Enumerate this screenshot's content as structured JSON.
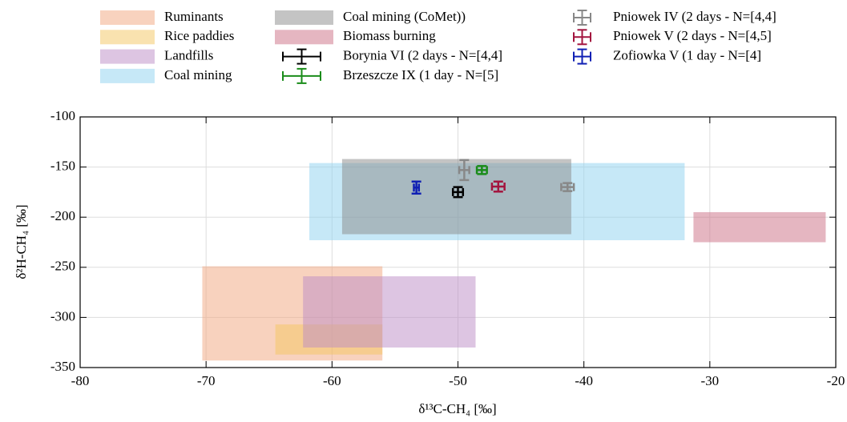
{
  "chart_data": {
    "type": "scatter",
    "x_label": "δ¹³C-CH₄ [‰]",
    "y_label": "δ²H-CH₄ [‰]",
    "xlim": [
      -80,
      -20
    ],
    "xticks": [
      -80,
      -70,
      -60,
      -50,
      -40,
      -30,
      -20
    ],
    "ylim": [
      -350,
      -100
    ],
    "yticks": [
      -350,
      -300,
      -250,
      -200,
      -150,
      -100
    ],
    "grid": true,
    "regions": [
      {
        "name": "Ruminants",
        "color": "#f1a67e",
        "x": [
          -70.3,
          -56
        ],
        "y": [
          -343,
          -249
        ]
      },
      {
        "name": "Rice paddies",
        "color": "#f4c65f",
        "x": [
          -64.5,
          -56
        ],
        "y": [
          -337,
          -307
        ]
      },
      {
        "name": "Landfills",
        "color": "#bb8cc6",
        "x": [
          -62.3,
          -48.6
        ],
        "y": [
          -330,
          -259
        ]
      },
      {
        "name": "Coal mining",
        "color": "#8dd2f0",
        "x": [
          -61.8,
          -32
        ],
        "y": [
          -223,
          -146
        ]
      },
      {
        "name": "Coal mining (CoMet))",
        "color": "#8a8a8a",
        "x": [
          -59.2,
          -41
        ],
        "y": [
          -217,
          -142
        ]
      },
      {
        "name": "Biomass burning",
        "color": "#cc6e84",
        "x": [
          -31.3,
          -20.8
        ],
        "y": [
          -225,
          -195
        ]
      }
    ],
    "series": [
      {
        "name": "Borynia VI (2 days - N=[4,4]",
        "color": "#000000",
        "x": [
          -50
        ],
        "values": [
          -175
        ],
        "xerr": [
          0.4
        ],
        "yerr": [
          5
        ]
      },
      {
        "name": "Brzeszcze IX (1 day - N=[5]",
        "color": "#1a8c1a",
        "x": [
          -48.1
        ],
        "values": [
          -153
        ],
        "xerr": [
          0.4
        ],
        "yerr": [
          4
        ]
      },
      {
        "name": "Pniowek IV (2 days - N=[4,4]",
        "color": "#888888",
        "x": [
          -49.5,
          -41.3
        ],
        "values": [
          -153,
          -170
        ],
        "xerr": [
          0.4,
          0.5
        ],
        "yerr": [
          10,
          4
        ]
      },
      {
        "name": "Pniowek V (2 days - N=[4,5]",
        "color": "#a3153f",
        "x": [
          -46.8
        ],
        "values": [
          -169.5
        ],
        "xerr": [
          0.5
        ],
        "yerr": [
          5
        ]
      },
      {
        "name": "Zofiowka V (1 day - N=[4]",
        "color": "#1020b4",
        "x": [
          -53.3
        ],
        "values": [
          -170.5
        ],
        "xerr": [
          0.2
        ],
        "yerr": [
          6
        ]
      }
    ]
  }
}
